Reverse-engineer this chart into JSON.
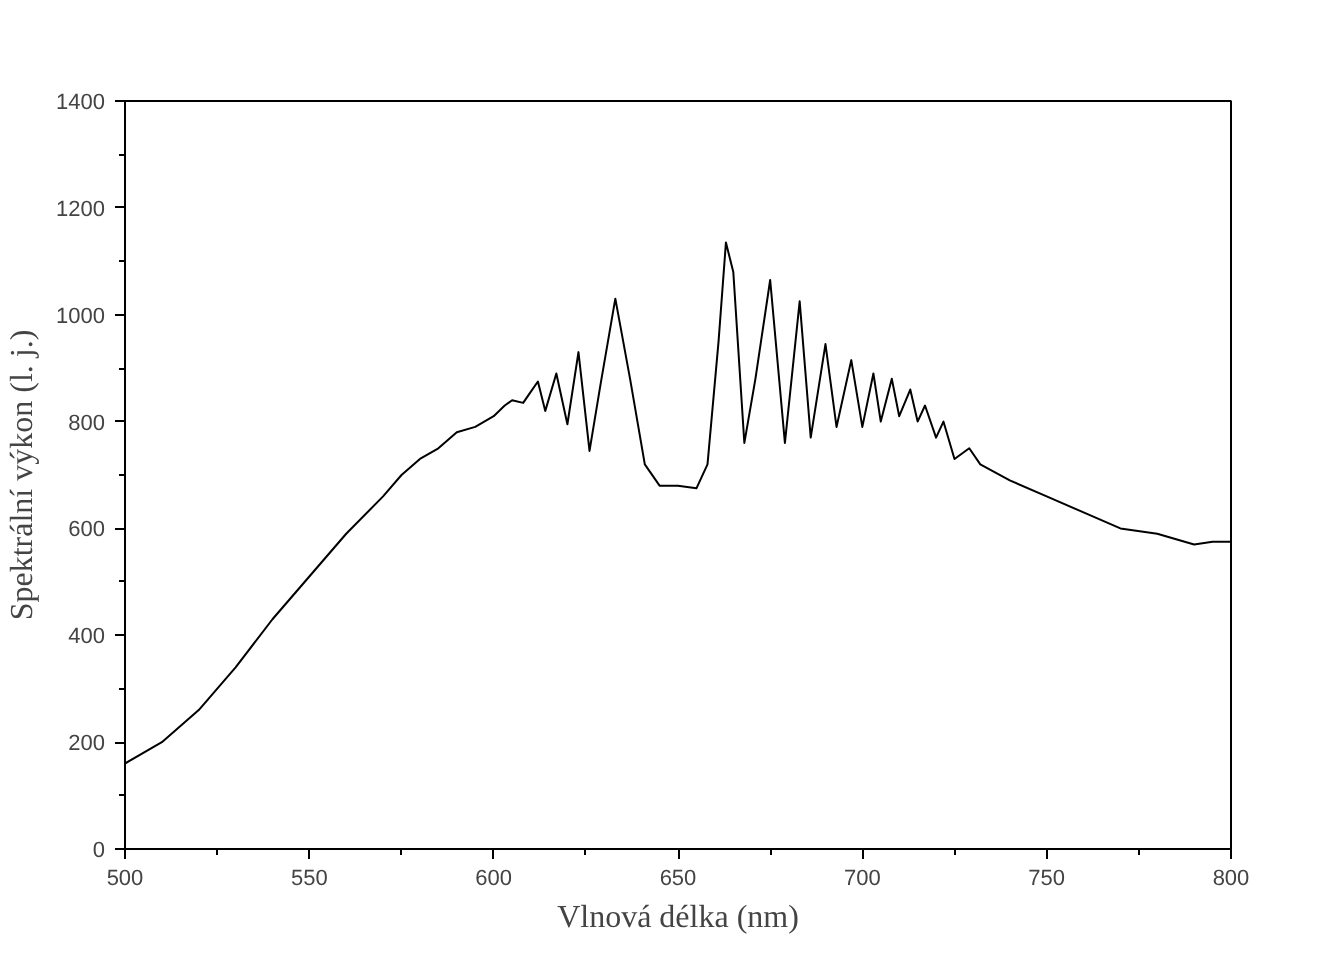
{
  "chart_data": {
    "type": "line",
    "xlabel": "Vlnová délka (nm)",
    "ylabel": "Spektrální výkon (l. j.)",
    "xlim": [
      500,
      800
    ],
    "ylim": [
      0,
      1400
    ],
    "xticks": [
      500,
      550,
      600,
      650,
      700,
      750,
      800
    ],
    "yticks": [
      0,
      200,
      400,
      600,
      800,
      1000,
      1200,
      1400
    ],
    "grid": false,
    "marker": "none",
    "line_style": "solid",
    "series": [
      {
        "color": "#000000",
        "x": [
          500,
          510,
          520,
          530,
          540,
          550,
          560,
          570,
          575,
          580,
          585,
          590,
          595,
          600,
          603,
          605,
          608,
          610,
          612,
          614,
          617,
          620,
          623,
          626,
          629,
          633,
          637,
          641,
          645,
          650,
          655,
          658,
          661,
          663,
          665,
          668,
          671,
          675,
          679,
          683,
          686,
          690,
          693,
          697,
          700,
          703,
          705,
          708,
          710,
          713,
          715,
          717,
          720,
          722,
          725,
          729,
          732,
          740,
          750,
          760,
          770,
          780,
          790,
          795,
          800
        ],
        "values": [
          160,
          200,
          260,
          340,
          430,
          510,
          590,
          660,
          700,
          730,
          750,
          780,
          790,
          810,
          830,
          840,
          835,
          855,
          875,
          820,
          890,
          795,
          930,
          745,
          870,
          1030,
          880,
          720,
          680,
          680,
          675,
          720,
          950,
          1135,
          1080,
          760,
          880,
          1065,
          760,
          1025,
          770,
          945,
          790,
          915,
          790,
          890,
          800,
          880,
          810,
          860,
          800,
          830,
          770,
          800,
          730,
          750,
          720,
          690,
          660,
          630,
          600,
          590,
          570,
          575,
          575
        ]
      }
    ]
  }
}
